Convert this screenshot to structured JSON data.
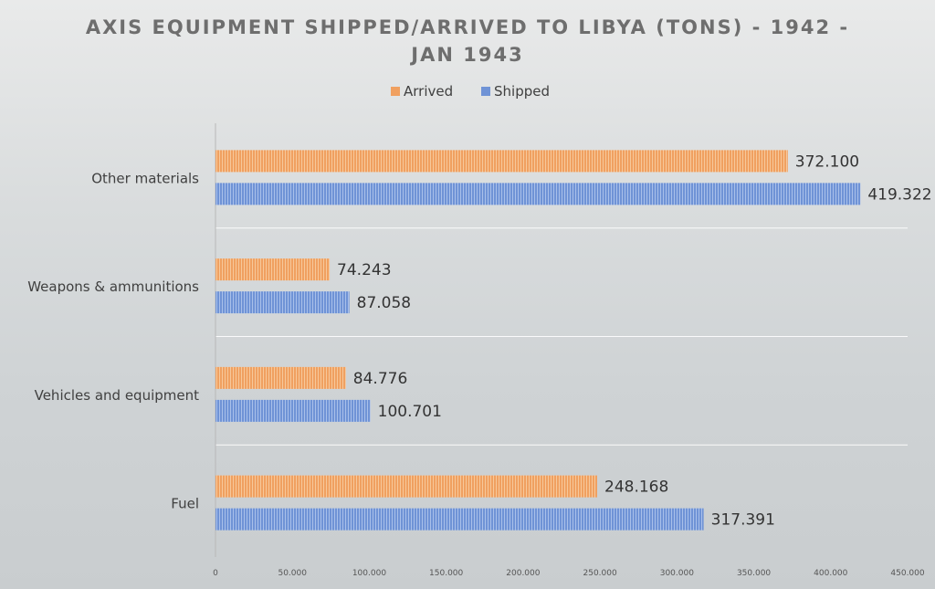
{
  "chart_data": {
    "type": "bar",
    "orientation": "horizontal",
    "title_lines": [
      "AXIS EQUIPMENT SHIPPED/ARRIVED TO LIBYA (TONS) - 1942 -",
      "JAN 1943"
    ],
    "categories": [
      "Other materials",
      "Weapons & ammunitions",
      "Vehicles and equipment",
      "Fuel"
    ],
    "series": [
      {
        "name": "Arrived",
        "color": "#f0a060",
        "values": [
          372.1,
          74.243,
          84.776,
          248.168
        ],
        "labels": [
          "372.100",
          "74.243",
          "84.776",
          "248.168"
        ]
      },
      {
        "name": "Shipped",
        "color": "#6f93d6",
        "values": [
          419.322,
          87.058,
          100.701,
          317.391
        ],
        "labels": [
          "419.322",
          "87.058",
          "100.701",
          "317.391"
        ]
      }
    ],
    "xlim": [
      0,
      450
    ],
    "xticks": [
      0,
      50,
      100,
      150,
      200,
      250,
      300,
      350,
      400,
      450
    ],
    "xtick_labels": [
      "0",
      "50.000",
      "100.000",
      "150.000",
      "200.000",
      "250.000",
      "300.000",
      "350.000",
      "400.000",
      "450.000"
    ],
    "legend_position": "top",
    "grid": "horizontal"
  }
}
